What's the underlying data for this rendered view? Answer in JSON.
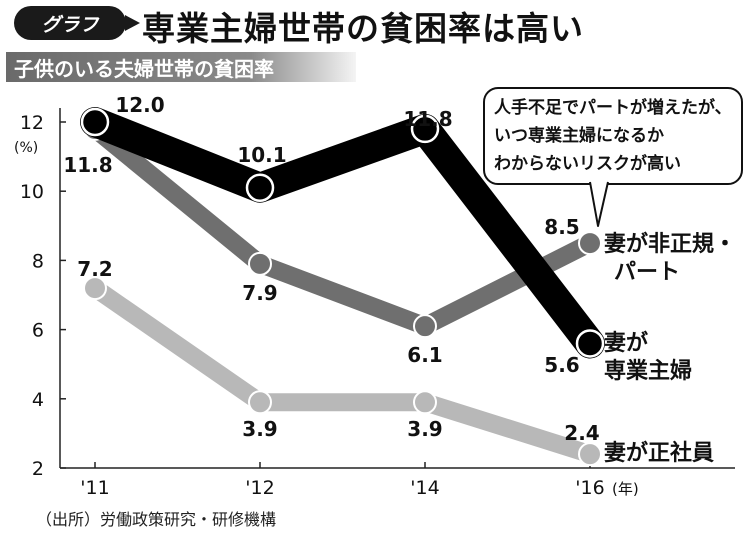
{
  "header": {
    "badge": "グラフ",
    "title": "専業主婦世帯の貧困率は高い"
  },
  "subtitle": "子供のいる夫婦世帯の貧困率",
  "footnote": "（出所）労働政策研究・研修機構",
  "callout": {
    "lines": [
      "人手不足でパートが増えたが、",
      "いつ専業主婦になるか",
      "わからないリスクが高い"
    ]
  },
  "chart_data": {
    "type": "line",
    "x": [
      "'11",
      "'12",
      "'14",
      "'16"
    ],
    "x_unit": "(年)",
    "y_unit": "(%)",
    "ylim": [
      2,
      12
    ],
    "yticks": [
      2,
      4,
      6,
      8,
      10,
      12
    ],
    "grid": false,
    "series": [
      {
        "name": "妻が専業主婦",
        "label_lines": [
          "妻が",
          "専業主婦"
        ],
        "values": [
          12.0,
          10.1,
          11.8,
          5.6
        ],
        "value_labels": [
          "12.0",
          "10.1",
          "11.8",
          "5.6"
        ],
        "color": "#000000"
      },
      {
        "name": "妻が非正規・パート",
        "label_lines": [
          "妻が非正規・",
          "パート"
        ],
        "values": [
          11.8,
          7.9,
          6.1,
          8.5
        ],
        "value_labels": [
          "11.8",
          "7.9",
          "6.1",
          "8.5"
        ],
        "color": "#6f6f6f"
      },
      {
        "name": "妻が正社員",
        "label_lines": [
          "妻が正社員"
        ],
        "values": [
          7.2,
          3.9,
          3.9,
          2.4
        ],
        "value_labels": [
          "7.2",
          "3.9",
          "3.9",
          "2.4"
        ],
        "color": "#b8b8b8"
      }
    ]
  }
}
